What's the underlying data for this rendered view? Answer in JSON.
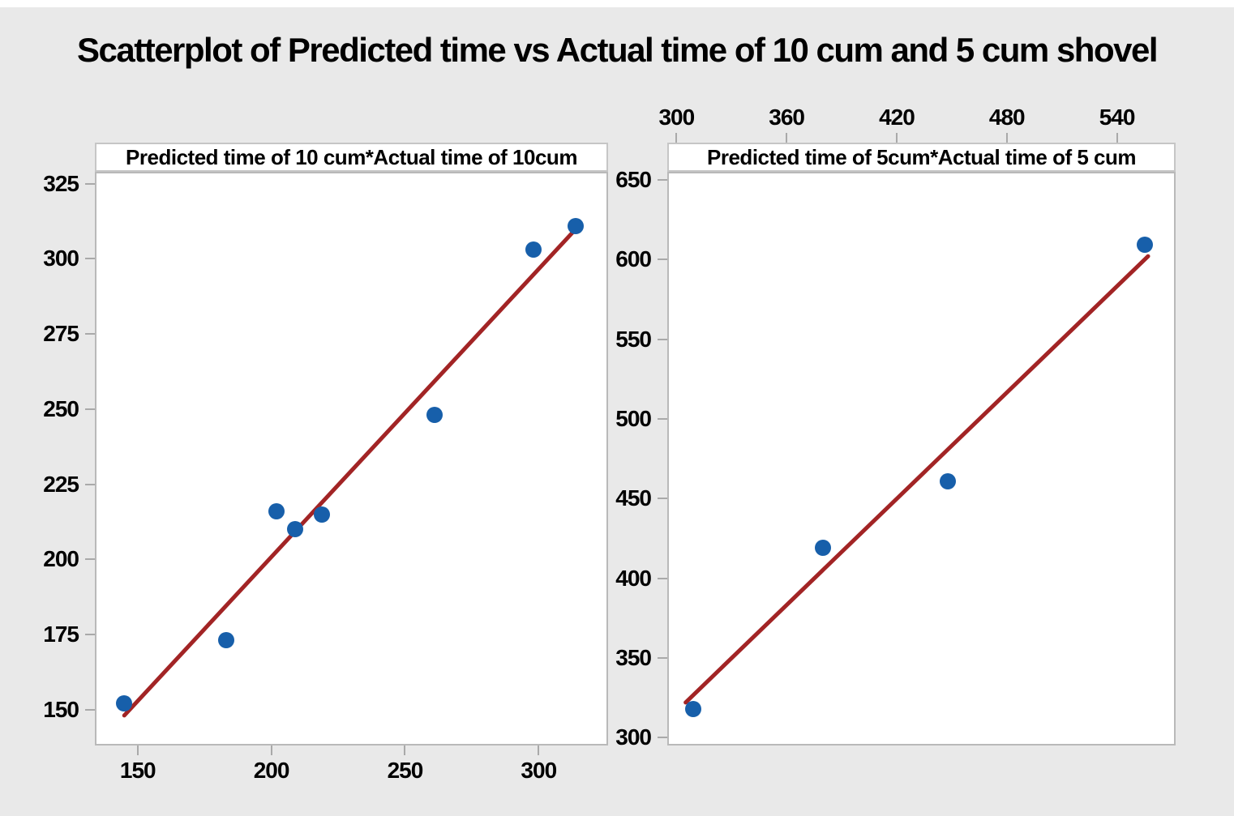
{
  "title": "Scatterplot of Predicted time vs Actual time of 10 cum and 5 cum shovel",
  "colors": {
    "background": "#E9E9E9",
    "top_strip": "#FFFFFF",
    "panel_bg": "#FFFFFF",
    "panel_border": "#B9B9B9",
    "header_border": "#C6C6C6",
    "point": "#175FAA",
    "fit_line": "#A22425",
    "tick": "#A9A9A9",
    "text": "#000000"
  },
  "chart_data": [
    {
      "type": "scatter",
      "title": "Predicted time of 10 cum*Actual time of 10cum",
      "x_axis_position": "bottom",
      "xlim": [
        134,
        326
      ],
      "ylim": [
        138,
        329
      ],
      "xticks": [
        150,
        200,
        250,
        300
      ],
      "yticks": [
        150,
        175,
        200,
        225,
        250,
        275,
        300,
        325
      ],
      "grid": false,
      "legend": "none",
      "points": [
        {
          "x": 145,
          "y": 152
        },
        {
          "x": 183,
          "y": 173
        },
        {
          "x": 202,
          "y": 216
        },
        {
          "x": 209,
          "y": 210
        },
        {
          "x": 219,
          "y": 215
        },
        {
          "x": 261,
          "y": 248
        },
        {
          "x": 298,
          "y": 303
        },
        {
          "x": 314,
          "y": 311
        }
      ],
      "fit_line": {
        "x1": 145,
        "y1": 148,
        "x2": 314.5,
        "y2": 310.5
      }
    },
    {
      "type": "scatter",
      "title": "Predicted time of 5cum*Actual time of 5 cum",
      "x_axis_position": "top",
      "xlim": [
        295,
        572
      ],
      "ylim": [
        295,
        655
      ],
      "xticks": [
        300,
        360,
        420,
        480,
        540
      ],
      "yticks": [
        300,
        350,
        400,
        450,
        500,
        550,
        600,
        650
      ],
      "grid": false,
      "legend": "none",
      "points": [
        {
          "x": 309,
          "y": 318
        },
        {
          "x": 380,
          "y": 419
        },
        {
          "x": 448,
          "y": 461
        },
        {
          "x": 555,
          "y": 609
        }
      ],
      "fit_line": {
        "x1": 305,
        "y1": 322,
        "x2": 557,
        "y2": 602
      }
    }
  ]
}
